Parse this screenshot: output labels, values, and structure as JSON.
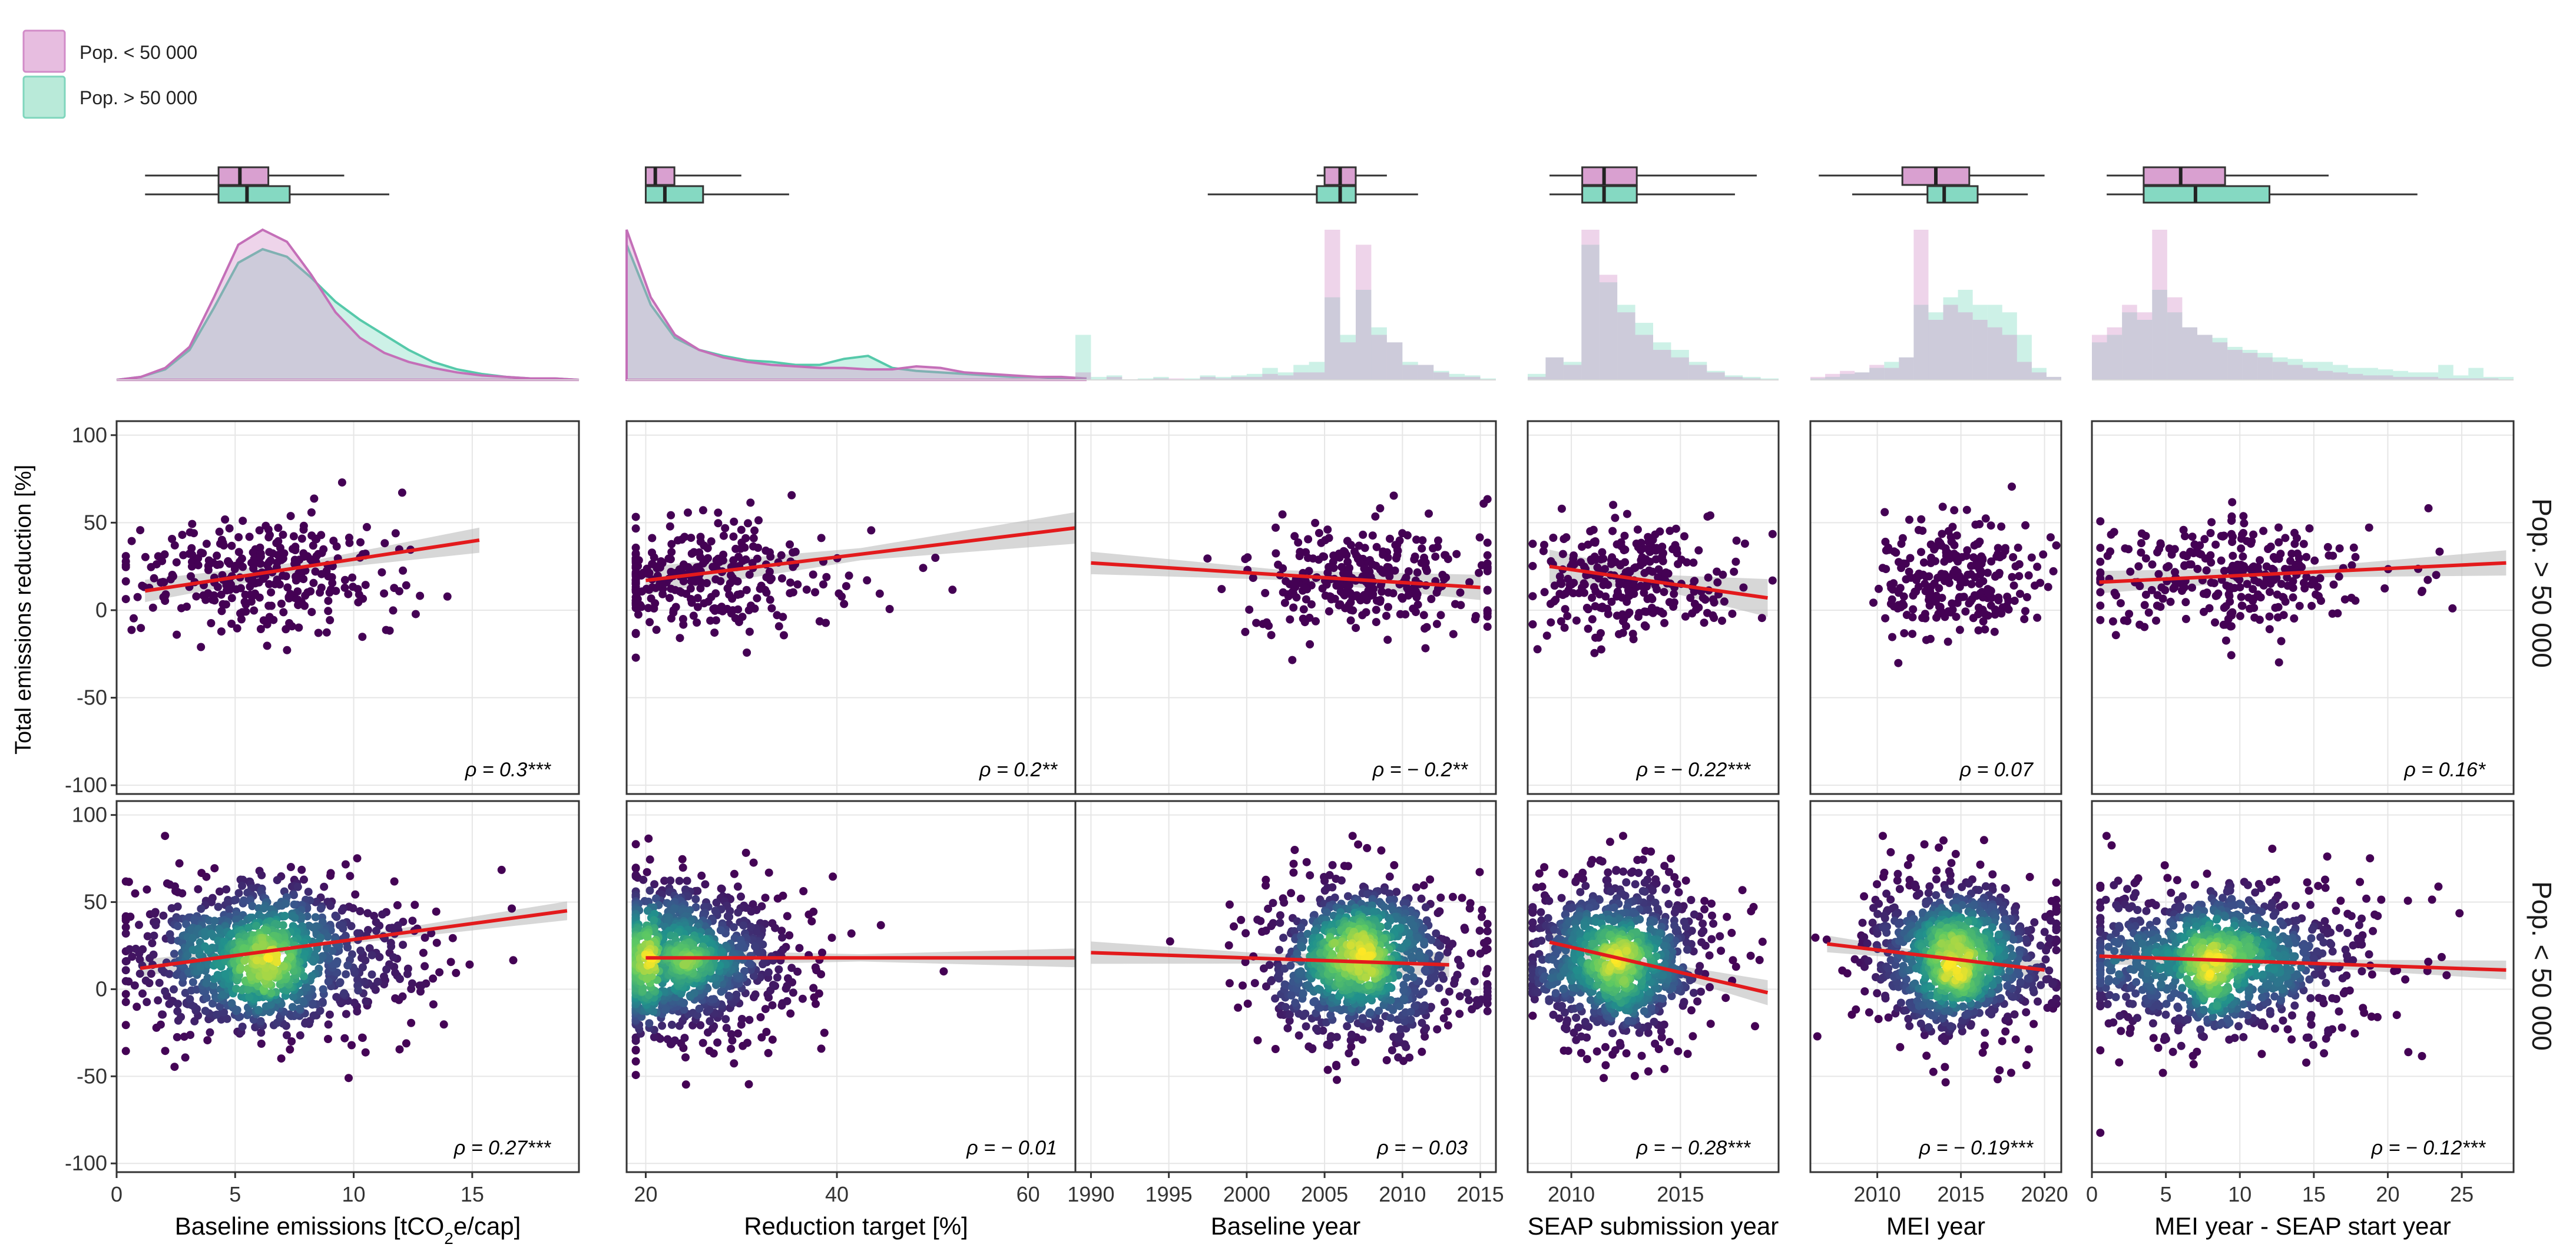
{
  "legend": [
    {
      "label": "Pop. < 50 000",
      "fill": "#e7bde0",
      "stroke": "#d28bc8"
    },
    {
      "label": "Pop. > 50 000",
      "fill": "#b9ead9",
      "stroke": "#7fd6bd"
    }
  ],
  "colors": {
    "small_fill": "#cf85c4",
    "large_fill": "#6fd6bb",
    "small_box": "#d9a0d0",
    "large_box": "#85d9c2",
    "point": "#440154",
    "fit_line": "#e31a1c",
    "ci_band": "#bdbdbd",
    "grid": "#e6e6e6",
    "panel_border": "#333333",
    "density_scale": [
      "#440154",
      "#3b528b",
      "#21918c",
      "#5ec962",
      "#fde725"
    ]
  },
  "y_axis_title": "Total emissions reduction [%]",
  "strip_labels": [
    "Pop. > 50 000",
    "Pop. < 50 000"
  ],
  "chart_data": {
    "type": "scatter",
    "y_range": [
      -105,
      108
    ],
    "y_ticks": [
      100,
      50,
      0,
      -50,
      -100
    ],
    "y_tick_labels": [
      "100",
      "50",
      "0",
      "-50",
      "-100"
    ],
    "panels": [
      {
        "xlabel": "Baseline emissions [tCO2e/cap]",
        "xlabel_parts": [
          {
            "t": "Baseline emissions [tCO"
          },
          {
            "t": "2",
            "sub": true
          },
          {
            "t": "e/cap]"
          }
        ],
        "x_range": [
          0,
          19.5
        ],
        "x_ticks": [
          0,
          5,
          10,
          15
        ],
        "x_tick_labels": [
          "0",
          "5",
          "10",
          "15"
        ],
        "boxplots": {
          "small": {
            "min": 1.2,
            "q1": 4.3,
            "median": 5.2,
            "q3": 6.4,
            "max": 9.6
          },
          "large": {
            "min": 1.2,
            "q1": 4.3,
            "median": 5.5,
            "q3": 7.3,
            "max": 11.5
          }
        },
        "marginal": {
          "kind": "density",
          "small": [
            0,
            0.02,
            0.08,
            0.22,
            0.55,
            0.9,
            1.0,
            0.92,
            0.7,
            0.45,
            0.28,
            0.18,
            0.12,
            0.08,
            0.05,
            0.03,
            0.02,
            0.01,
            0.01,
            0.0
          ],
          "large": [
            0,
            0.02,
            0.07,
            0.2,
            0.48,
            0.78,
            0.87,
            0.82,
            0.68,
            0.52,
            0.4,
            0.3,
            0.2,
            0.12,
            0.07,
            0.04,
            0.02,
            0.01,
            0.01,
            0.0
          ]
        },
        "rows": [
          {
            "n": 320,
            "center": [
              5.5,
              20
            ],
            "spread": [
              2.6,
              17
            ],
            "fit": [
              [
                1.2,
                11
              ],
              [
                15.3,
                40
              ]
            ],
            "band": 4,
            "rho": "ρ = 0.3***"
          },
          {
            "n": 1100,
            "center": [
              5.5,
              18
            ],
            "spread": [
              2.4,
              22
            ],
            "fit": [
              [
                1.0,
                12
              ],
              [
                19.0,
                45
              ]
            ],
            "band": 3,
            "rho": "ρ = 0.27***"
          }
        ]
      },
      {
        "xlabel": "Reduction target [%]",
        "x_range": [
          18,
          66
        ],
        "x_ticks": [
          20,
          40,
          60
        ],
        "x_tick_labels": [
          "20",
          "40",
          "60"
        ],
        "boxplots": {
          "small": {
            "min": 20,
            "q1": 20,
            "median": 21,
            "q3": 23,
            "max": 30
          },
          "large": {
            "min": 20,
            "q1": 20,
            "median": 22,
            "q3": 26,
            "max": 35
          }
        },
        "marginal": {
          "kind": "density",
          "small": [
            1.0,
            0.55,
            0.3,
            0.2,
            0.15,
            0.12,
            0.1,
            0.09,
            0.08,
            0.08,
            0.07,
            0.07,
            0.09,
            0.08,
            0.05,
            0.04,
            0.03,
            0.02,
            0.02,
            0.01
          ],
          "large": [
            0.9,
            0.5,
            0.28,
            0.2,
            0.16,
            0.13,
            0.12,
            0.1,
            0.1,
            0.14,
            0.16,
            0.08,
            0.06,
            0.05,
            0.04,
            0.03,
            0.02,
            0.02,
            0.01,
            0.01
          ]
        },
        "rows": [
          {
            "n": 300,
            "center": [
              24,
              18
            ],
            "spread": [
              6,
              17
            ],
            "fit": [
              [
                20,
                17
              ],
              [
                65,
                47
              ]
            ],
            "band": 5,
            "rho": "ρ = 0.2**"
          },
          {
            "n": 1100,
            "center": [
              22,
              18
            ],
            "spread": [
              5,
              22
            ],
            "fit": [
              [
                20,
                18
              ],
              [
                65,
                18
              ]
            ],
            "band": 3,
            "rho": "ρ = − 0.01"
          }
        ]
      },
      {
        "xlabel": "Baseline year",
        "x_range": [
          1989,
          2016
        ],
        "x_ticks": [
          1990,
          1995,
          2000,
          2005,
          2010,
          2015
        ],
        "x_tick_labels": [
          "1990",
          "1995",
          "2000",
          "2005",
          "2010",
          "2015"
        ],
        "boxplots": {
          "small": {
            "min": 2004.5,
            "q1": 2005,
            "median": 2006,
            "q3": 2007,
            "max": 2009
          },
          "large": {
            "min": 1997.5,
            "q1": 2004.5,
            "median": 2006,
            "q3": 2007,
            "max": 2011
          }
        },
        "marginal": {
          "kind": "hist",
          "small": [
            0.05,
            0.0,
            0.02,
            0.0,
            0.0,
            0.01,
            0.01,
            0.0,
            0.02,
            0.01,
            0.02,
            0.02,
            0.04,
            0.03,
            0.05,
            0.05,
            1.0,
            0.25,
            0.9,
            0.3,
            0.25,
            0.1,
            0.1,
            0.05,
            0.02,
            0.02,
            0.0
          ],
          "large": [
            0.3,
            0.02,
            0.03,
            0.0,
            0.01,
            0.02,
            0.0,
            0.01,
            0.03,
            0.02,
            0.03,
            0.04,
            0.08,
            0.05,
            0.1,
            0.12,
            0.55,
            0.3,
            0.6,
            0.35,
            0.25,
            0.12,
            0.1,
            0.06,
            0.04,
            0.03,
            0.01
          ]
        },
        "rows": [
          {
            "n": 300,
            "center": [
              2006,
              18
            ],
            "spread": [
              3.5,
              17
            ],
            "fit": [
              [
                1990,
                27
              ],
              [
                2015,
                13
              ]
            ],
            "band": 4,
            "rho": "ρ = − 0.2**"
          },
          {
            "n": 1000,
            "center": [
              2006.5,
              18
            ],
            "spread": [
              2.8,
              22
            ],
            "fit": [
              [
                1990,
                21
              ],
              [
                2013,
                14
              ]
            ],
            "band": 4,
            "rho": "ρ = − 0.03"
          }
        ]
      },
      {
        "xlabel": "SEAP submission year",
        "x_range": [
          2008,
          2019.5
        ],
        "x_ticks": [
          2010,
          2015
        ],
        "x_tick_labels": [
          "2010",
          "2015"
        ],
        "boxplots": {
          "small": {
            "min": 2009,
            "q1": 2010.5,
            "median": 2011.5,
            "q3": 2013,
            "max": 2018.5
          },
          "large": {
            "min": 2009,
            "q1": 2010.5,
            "median": 2011.5,
            "q3": 2013,
            "max": 2017.5
          }
        },
        "marginal": {
          "kind": "hist",
          "small": [
            0.02,
            0.15,
            0.1,
            1.0,
            0.7,
            0.45,
            0.3,
            0.2,
            0.15,
            0.1,
            0.05,
            0.02,
            0.01,
            0.0
          ],
          "large": [
            0.04,
            0.15,
            0.12,
            0.9,
            0.65,
            0.5,
            0.38,
            0.25,
            0.2,
            0.12,
            0.06,
            0.03,
            0.02,
            0.01
          ]
        },
        "rows": [
          {
            "n": 280,
            "center": [
              2012,
              18
            ],
            "spread": [
              2.0,
              17
            ],
            "fit": [
              [
                2009,
                25
              ],
              [
                2019,
                7
              ]
            ],
            "band": 6,
            "rho": "ρ = − 0.22***"
          },
          {
            "n": 1000,
            "center": [
              2011.5,
              18
            ],
            "spread": [
              1.8,
              22
            ],
            "fit": [
              [
                2009,
                27
              ],
              [
                2019,
                -2
              ]
            ],
            "band": 4,
            "rho": "ρ = − 0.28***"
          }
        ]
      },
      {
        "xlabel": "MEI year",
        "x_range": [
          2006,
          2021
        ],
        "x_ticks": [
          2010,
          2015,
          2020
        ],
        "x_tick_labels": [
          "2010",
          "2015",
          "2020"
        ],
        "boxplots": {
          "small": {
            "min": 2006.5,
            "q1": 2011.5,
            "median": 2013.5,
            "q3": 2015.5,
            "max": 2020
          },
          "large": {
            "min": 2008.5,
            "q1": 2013,
            "median": 2014,
            "q3": 2016,
            "max": 2019
          }
        },
        "marginal": {
          "kind": "hist",
          "small": [
            0.02,
            0.04,
            0.06,
            0.05,
            0.1,
            0.08,
            0.15,
            1.0,
            0.4,
            0.5,
            0.45,
            0.4,
            0.35,
            0.3,
            0.12,
            0.05,
            0.02
          ],
          "large": [
            0.01,
            0.02,
            0.04,
            0.05,
            0.08,
            0.12,
            0.15,
            0.5,
            0.45,
            0.55,
            0.6,
            0.5,
            0.5,
            0.45,
            0.3,
            0.08,
            0.02
          ]
        },
        "rows": [
          {
            "n": 260,
            "center": [
              2014,
              20
            ],
            "spread": [
              2.2,
              17
            ],
            "fit": null,
            "band": 0,
            "rho": "ρ = 0.07"
          },
          {
            "n": 1000,
            "center": [
              2014,
              18
            ],
            "spread": [
              2.3,
              22
            ],
            "fit": [
              [
                2007,
                26
              ],
              [
                2020,
                11
              ]
            ],
            "band": 3,
            "rho": "ρ = − 0.19***"
          }
        ]
      },
      {
        "xlabel": "MEI year - SEAP start year",
        "x_range": [
          0,
          28.5
        ],
        "x_ticks": [
          0,
          5,
          10,
          15,
          20,
          25
        ],
        "x_tick_labels": [
          "0",
          "5",
          "10",
          "15",
          "20",
          "25"
        ],
        "boxplots": {
          "small": {
            "min": 1,
            "q1": 3.5,
            "median": 6,
            "q3": 9,
            "max": 16
          },
          "large": {
            "min": 1,
            "q1": 3.5,
            "median": 7,
            "q3": 12,
            "max": 22
          }
        },
        "marginal": {
          "kind": "hist",
          "small": [
            0.3,
            0.35,
            0.5,
            0.45,
            1.0,
            0.55,
            0.35,
            0.3,
            0.25,
            0.2,
            0.18,
            0.15,
            0.12,
            0.1,
            0.08,
            0.06,
            0.05,
            0.04,
            0.03,
            0.03,
            0.02,
            0.02,
            0.02,
            0.01,
            0.01,
            0.01,
            0.01,
            0.0
          ],
          "large": [
            0.25,
            0.3,
            0.45,
            0.4,
            0.6,
            0.45,
            0.35,
            0.3,
            0.28,
            0.22,
            0.2,
            0.18,
            0.15,
            0.14,
            0.12,
            0.12,
            0.1,
            0.08,
            0.08,
            0.07,
            0.06,
            0.05,
            0.05,
            0.1,
            0.03,
            0.08,
            0.02,
            0.02
          ]
        },
        "rows": [
          {
            "n": 300,
            "center": [
              8,
              19
            ],
            "spread": [
              5,
              17
            ],
            "fit": [
              [
                0.5,
                16
              ],
              [
                28,
                27
              ]
            ],
            "band": 4,
            "rho": "ρ = 0.16*"
          },
          {
            "n": 1100,
            "center": [
              7,
              17
            ],
            "spread": [
              4.5,
              22
            ],
            "fit": [
              [
                0.5,
                19
              ],
              [
                28,
                11
              ]
            ],
            "band": 3,
            "rho": "ρ = − 0.12***"
          }
        ]
      }
    ]
  }
}
